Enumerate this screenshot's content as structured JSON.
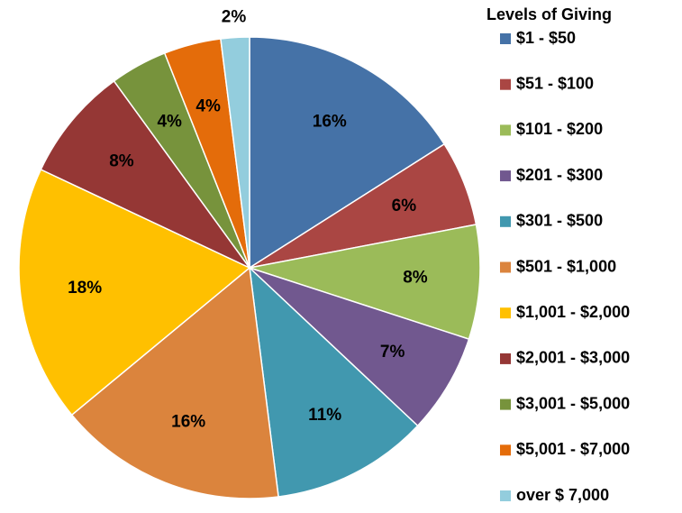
{
  "chart_data": {
    "type": "pie",
    "legend_title": "Levels of Giving",
    "categories": [
      "$1 - $50",
      "$51 - $100",
      "$101 - $200",
      "$201 - $300",
      "$301 - $500",
      "$501 - $1,000",
      "$1,001 - $2,000",
      "$2,001 - $3,000",
      "$3,001 - $5,000",
      "$5,001 - $7,000",
      "over $ 7,000"
    ],
    "values": [
      16,
      6,
      8,
      7,
      11,
      16,
      18,
      8,
      4,
      4,
      2
    ],
    "value_labels": [
      "16%",
      "6%",
      "8%",
      "7%",
      "11%",
      "16%",
      "18%",
      "8%",
      "4%",
      "4%",
      "2%"
    ],
    "colors": [
      "#4572a7",
      "#aa4643",
      "#9bbb59",
      "#71588f",
      "#4198af",
      "#db843d",
      "#ffc000",
      "#953735",
      "#77933c",
      "#e46c0a",
      "#93cddd"
    ],
    "legend": "right"
  }
}
